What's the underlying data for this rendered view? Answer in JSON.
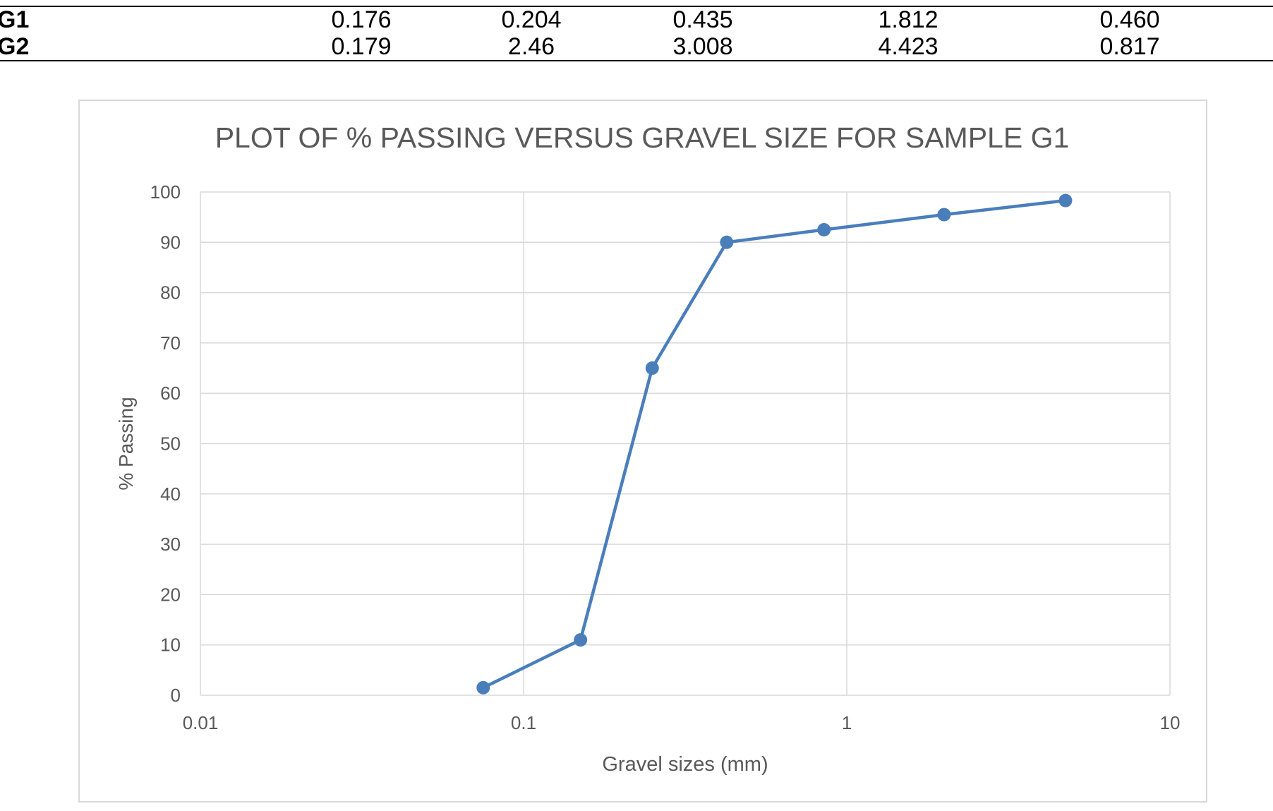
{
  "table": {
    "rows": [
      {
        "label": "G1",
        "values": [
          "0.176",
          "0.204",
          "0.435",
          "1.812",
          "0.460"
        ]
      },
      {
        "label": "G2",
        "values": [
          "0.179",
          "2.46",
          "3.008",
          "4.423",
          "0.817"
        ]
      }
    ]
  },
  "chart_data": {
    "type": "line",
    "title": "PLOT OF % PASSING VERSUS GRAVEL SIZE FOR SAMPLE G1",
    "xlabel": "Gravel sizes (mm)",
    "ylabel": "% Passing",
    "x_scale": "log",
    "xlim": [
      0.01,
      10
    ],
    "ylim": [
      0,
      100
    ],
    "x_ticks": [
      "0.01",
      "0.1",
      "1",
      "10"
    ],
    "y_ticks": [
      "0",
      "10",
      "20",
      "30",
      "40",
      "50",
      "60",
      "70",
      "80",
      "90",
      "100"
    ],
    "grid": true,
    "series": [
      {
        "color": "#4a7ebb",
        "x": [
          0.075,
          0.15,
          0.25,
          0.425,
          0.85,
          2.0,
          4.75
        ],
        "y": [
          1.5,
          11,
          65,
          90,
          92.5,
          95.5,
          98.3
        ]
      }
    ]
  }
}
